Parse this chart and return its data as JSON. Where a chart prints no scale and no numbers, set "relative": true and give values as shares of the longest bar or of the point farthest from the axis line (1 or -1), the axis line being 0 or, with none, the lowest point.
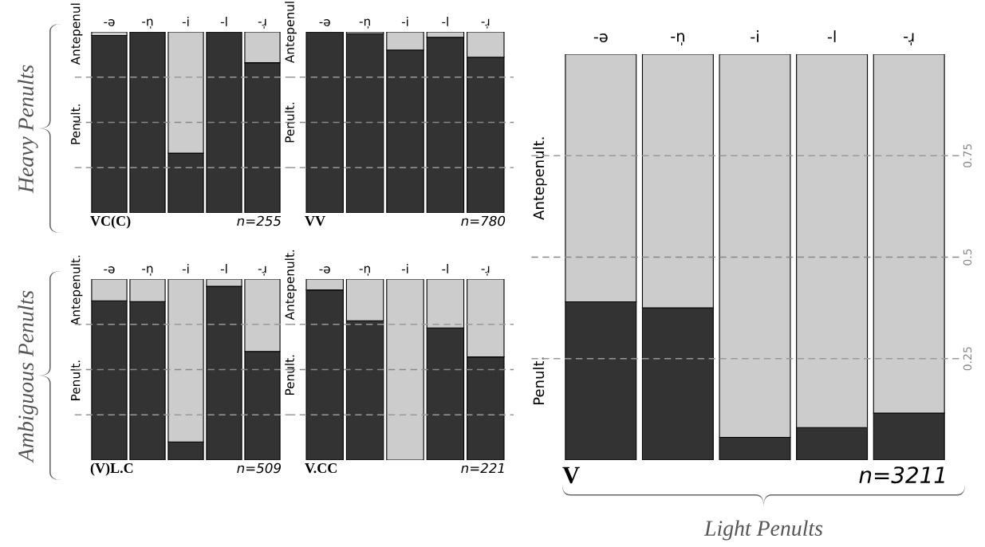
{
  "chart_data": [
    {
      "type": "bar",
      "stacked": true,
      "relative": true,
      "categories": [
        "-ə",
        "-n̩",
        "-i",
        "-l",
        "-ɹ̩"
      ],
      "tick_labels": "x",
      "series": [
        {
          "name": "Penult.",
          "color": "#333333",
          "values": [
            0.98,
            1,
            0.33,
            1,
            0.83
          ]
        },
        {
          "name": "Antepenul",
          "color": "#cccccc",
          "values": [
            0.02,
            0,
            0.67,
            0,
            0.17
          ]
        }
      ],
      "ref_lines": [
        {
          "axis": "y",
          "value": 0.25,
          "color": "#999999",
          "line_style": "dashed"
        },
        {
          "axis": "y",
          "value": 0.5,
          "color": "#888888",
          "line_style": "dashed"
        },
        {
          "axis": "y",
          "value": 0.75,
          "color": "#999999",
          "line_style": "dashed"
        }
      ],
      "annotations": [
        "VC(C)",
        "n=255",
        "Heavy Penults"
      ],
      "legend": false,
      "grid": false
    },
    {
      "type": "bar",
      "stacked": true,
      "relative": true,
      "categories": [
        "-ə",
        "-n̩",
        "-i",
        "-l",
        "-ɹ̩"
      ],
      "tick_labels": "x",
      "series": [
        {
          "name": "Penult.",
          "color": "#333333",
          "values": [
            1,
            0.99,
            0.9,
            0.97,
            0.86
          ]
        },
        {
          "name": "Antepenul",
          "color": "#cccccc",
          "values": [
            0,
            0.01,
            0.1,
            0.03,
            0.14
          ]
        }
      ],
      "ref_lines": [
        {
          "axis": "y",
          "value": 0.25,
          "color": "#999999",
          "line_style": "dashed"
        },
        {
          "axis": "y",
          "value": 0.5,
          "color": "#888888",
          "line_style": "dashed"
        },
        {
          "axis": "y",
          "value": 0.75,
          "color": "#999999",
          "line_style": "dashed"
        }
      ],
      "annotations": [
        "VV",
        "n=780"
      ],
      "legend": false,
      "grid": false
    },
    {
      "type": "bar",
      "stacked": true,
      "relative": true,
      "categories": [
        "-ə",
        "-n̩",
        "-i",
        "-l",
        "-ɹ̩"
      ],
      "tick_labels": "x",
      "series": [
        {
          "name": "Penult.",
          "color": "#333333",
          "values": [
            0.88,
            0.875,
            0.1,
            0.96,
            0.6
          ]
        },
        {
          "name": "Antepenult.",
          "color": "#cccccc",
          "values": [
            0.12,
            0.125,
            0.9,
            0.04,
            0.4
          ]
        }
      ],
      "ref_lines": [
        {
          "axis": "y",
          "value": 0.25,
          "color": "#999999",
          "line_style": "dashed"
        },
        {
          "axis": "y",
          "value": 0.5,
          "color": "#888888",
          "line_style": "dashed"
        },
        {
          "axis": "y",
          "value": 0.75,
          "color": "#999999",
          "line_style": "dashed"
        }
      ],
      "annotations": [
        "(V)L.C",
        "n=509",
        "Ambiguous Penults"
      ],
      "legend": false,
      "grid": false
    },
    {
      "type": "bar",
      "stacked": true,
      "relative": true,
      "categories": [
        "-ə",
        "-n̩",
        "-i",
        "-l",
        "-ɹ̩"
      ],
      "tick_labels": "x",
      "series": [
        {
          "name": "Penult.",
          "color": "#333333",
          "values": [
            0.94,
            0.77,
            0,
            0.73,
            0.57
          ]
        },
        {
          "name": "Antepenult.",
          "color": "#cccccc",
          "values": [
            0.06,
            0.23,
            1,
            0.27,
            0.43
          ]
        }
      ],
      "ref_lines": [
        {
          "axis": "y",
          "value": 0.25,
          "color": "#999999",
          "line_style": "dashed"
        },
        {
          "axis": "y",
          "value": 0.5,
          "color": "#888888",
          "line_style": "dashed"
        },
        {
          "axis": "y",
          "value": 0.75,
          "color": "#999999",
          "line_style": "dashed"
        }
      ],
      "annotations": [
        "V.CC",
        "n=221"
      ],
      "legend": false,
      "grid": false
    },
    {
      "type": "bar",
      "stacked": true,
      "categories": [
        "-ə",
        "-n̩",
        "-i",
        "-l",
        "-ɹ̩"
      ],
      "ylim": [
        0,
        1
      ],
      "yticks": [
        0.25,
        0.5,
        0.75
      ],
      "series": [
        {
          "name": "Penult.",
          "color": "#333333",
          "values": [
            0.39,
            0.375,
            0.056,
            0.08,
            0.116
          ]
        },
        {
          "name": "Antepenult.",
          "color": "#cccccc",
          "values": [
            0.61,
            0.625,
            0.944,
            0.92,
            0.884
          ]
        }
      ],
      "ref_lines": [
        {
          "axis": "y",
          "value": 0.25,
          "color": "#999999",
          "line_style": "dashed"
        },
        {
          "axis": "y",
          "value": 0.5,
          "color": "#888888",
          "line_style": "dashed"
        },
        {
          "axis": "y",
          "value": 0.75,
          "color": "#999999",
          "line_style": "dashed"
        }
      ],
      "annotations": [
        "V",
        "n=3211",
        "Light Penults"
      ],
      "legend": false,
      "grid": false
    }
  ]
}
